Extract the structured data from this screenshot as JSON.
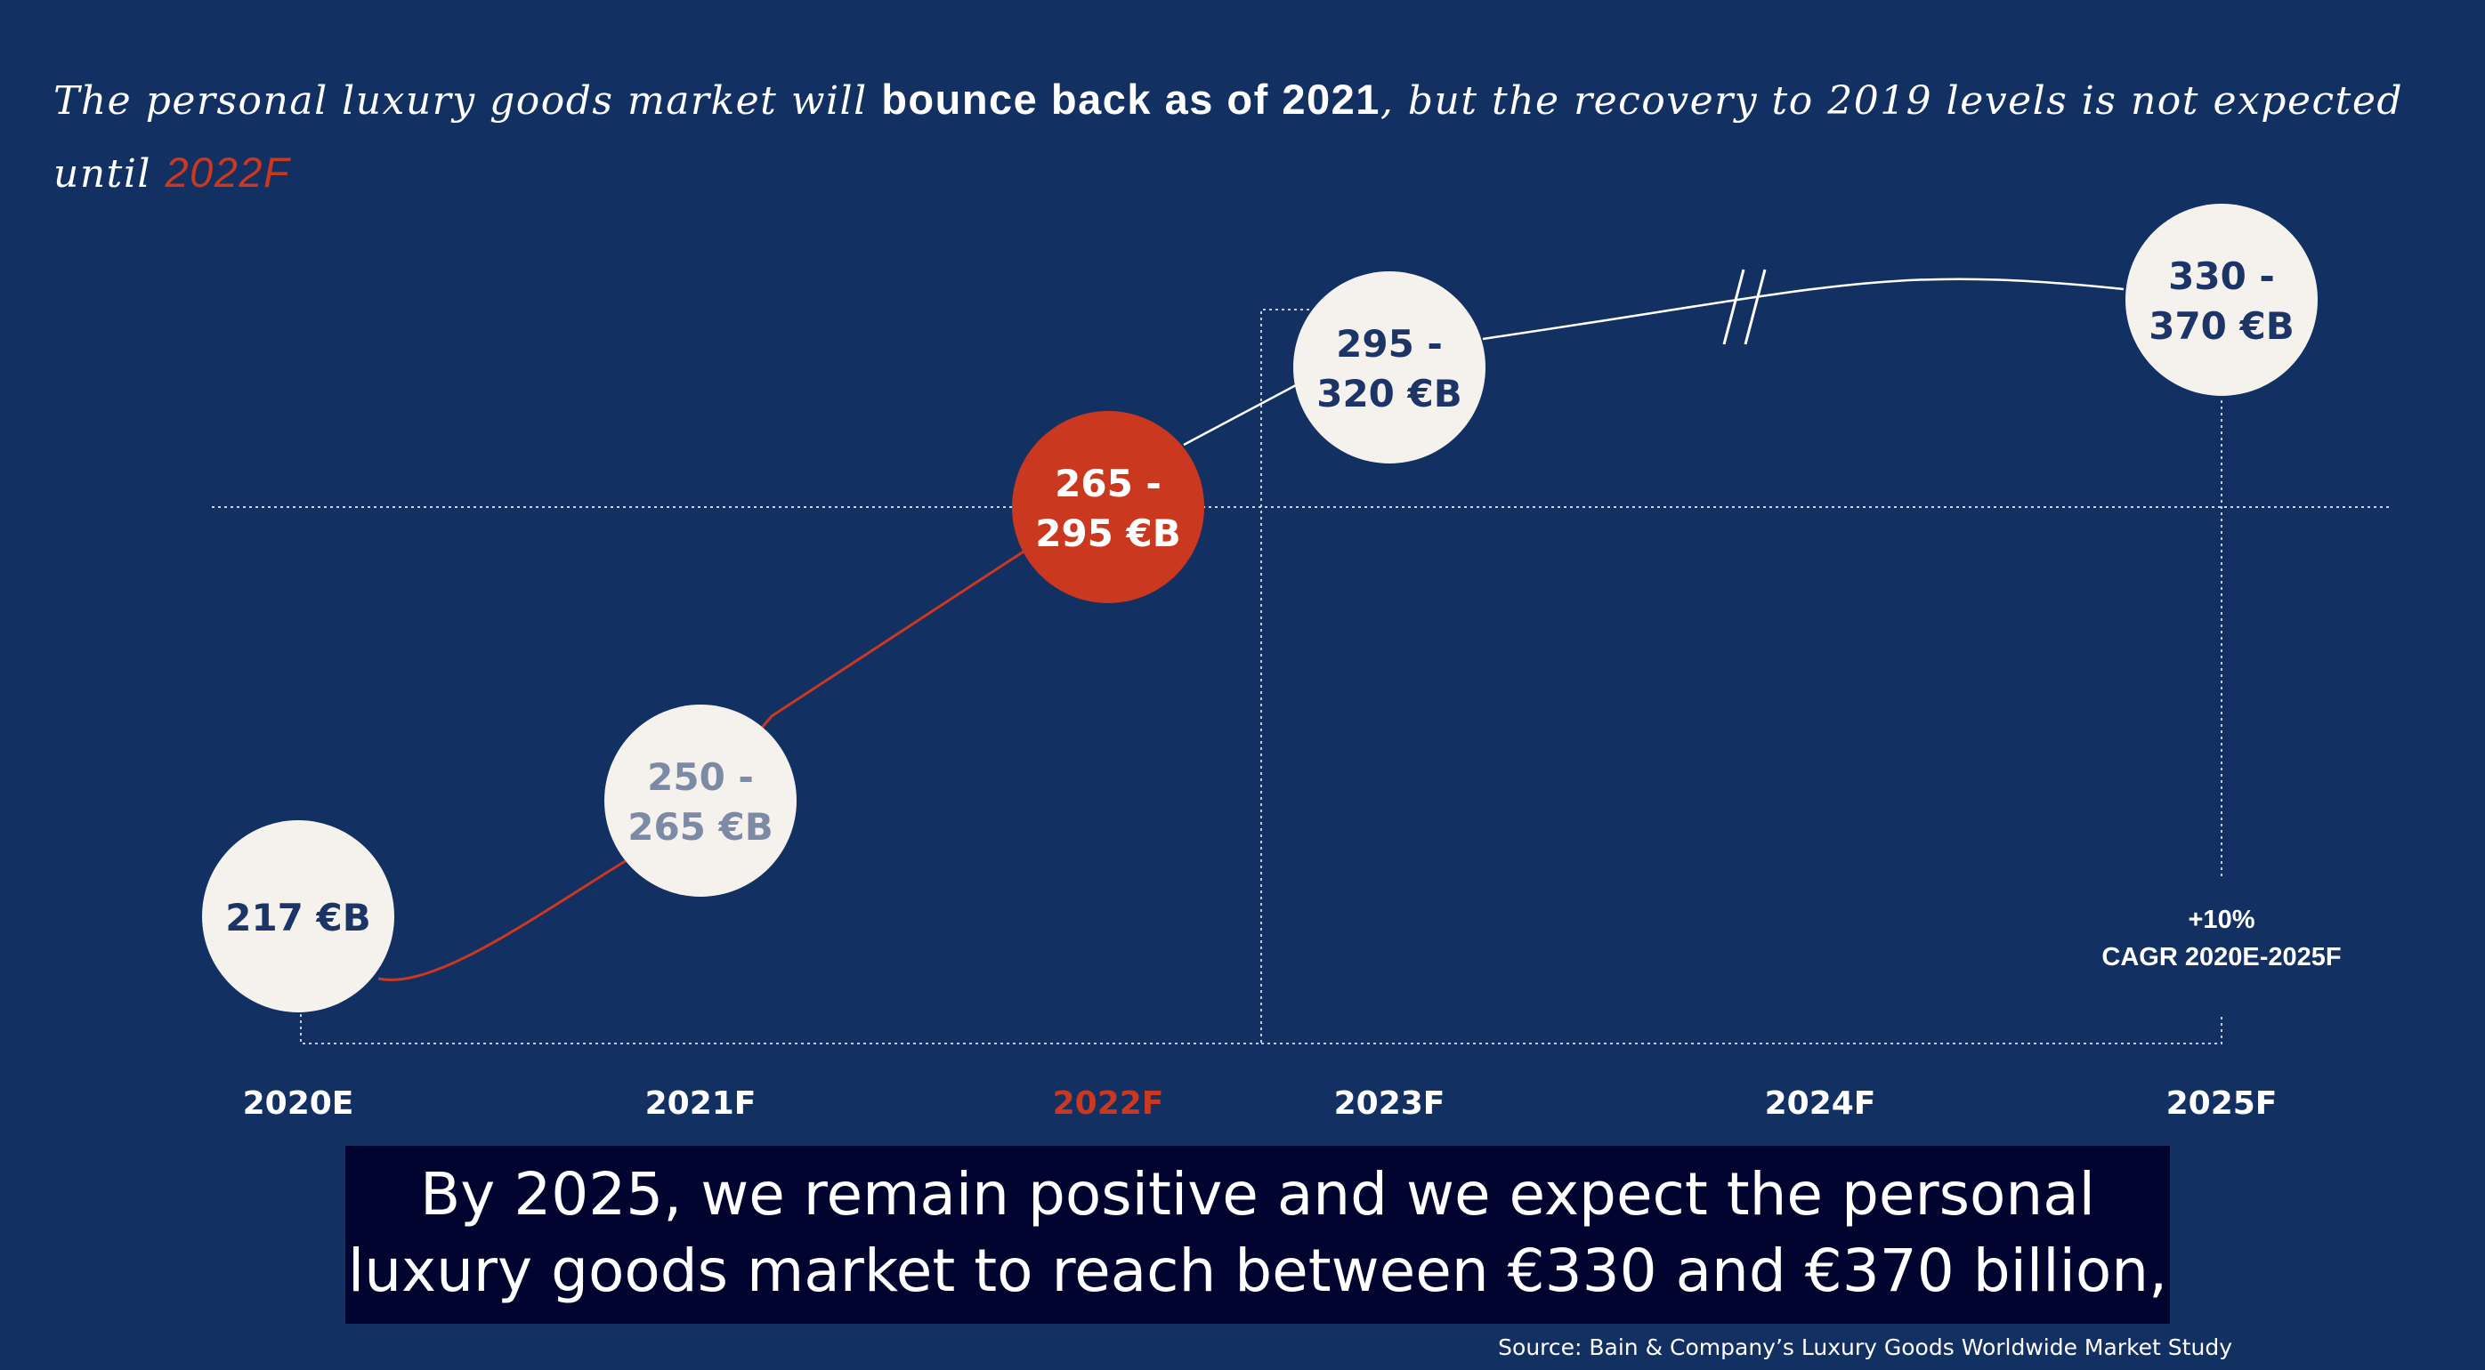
{
  "headline": {
    "part1": "The personal luxury goods market will ",
    "part2": "bounce back as of 2021",
    "part3": ", but the recovery to 2019 levels is not expected until ",
    "part4": "2022F"
  },
  "colors": {
    "background": "#133062",
    "highlight": "#c9381f",
    "bubble": "#f5f2ee",
    "bubble_text": "#1c3566",
    "muted_text": "#7d8aa6"
  },
  "chart_data": {
    "type": "line",
    "x": [
      "2020E",
      "2021F",
      "2022F",
      "2023F",
      "2024F",
      "2025F"
    ],
    "highlight_category": "2022F",
    "points": [
      {
        "x": "2020E",
        "low": 217,
        "high": 217,
        "label": "217 €B",
        "style": "normal"
      },
      {
        "x": "2021F",
        "low": 250,
        "high": 265,
        "label": "250 -\n265 €B",
        "style": "muted"
      },
      {
        "x": "2022F",
        "low": 265,
        "high": 295,
        "label": "265 -\n295 €B",
        "style": "highlight"
      },
      {
        "x": "2023F",
        "low": 295,
        "high": 320,
        "label": "295 -\n320 €B",
        "style": "normal"
      },
      {
        "x": "2025F",
        "low": 330,
        "high": 370,
        "label": "330 -\n370 €B",
        "style": "normal"
      }
    ],
    "reference_line": {
      "value": 280
    },
    "axis_break_between": [
      "2023F",
      "2025F"
    ],
    "annotation": {
      "line1": "+10%",
      "line2": "CAGR 2020E-2025F"
    }
  },
  "subtitle": {
    "line1": "By 2025, we remain positive and we expect the personal",
    "line2": "luxury goods market to reach between €330 and €370 billion,"
  },
  "source": "Source: Bain & Company’s Luxury Goods Worldwide Market Study"
}
